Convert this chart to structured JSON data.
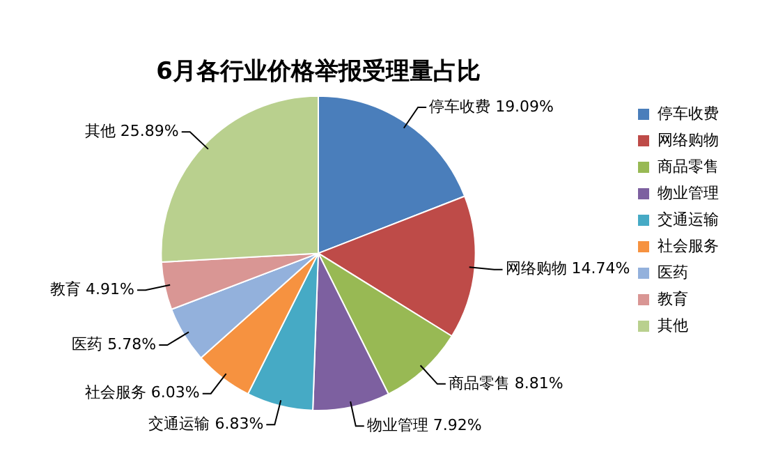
{
  "chart_data": {
    "type": "pie",
    "title": "6月各行业价格举报受理量占比",
    "categories": [
      "停车收费",
      "网络购物",
      "商品零售",
      "物业管理",
      "交通运输",
      "社会服务",
      "医药",
      "教育",
      "其他"
    ],
    "values": [
      19.09,
      14.74,
      8.81,
      7.92,
      6.83,
      6.03,
      5.78,
      4.91,
      25.89
    ],
    "value_labels": [
      "19.09%",
      "14.74%",
      "8.81%",
      "7.92%",
      "6.83%",
      "6.03%",
      "5.78%",
      "4.91%",
      "25.89%"
    ],
    "colors": [
      "#4a7ebb",
      "#be4b48",
      "#98b954",
      "#7d60a0",
      "#46aac5",
      "#f69240",
      "#93b1dc",
      "#d99694",
      "#b9d08e"
    ],
    "legend": "right"
  }
}
